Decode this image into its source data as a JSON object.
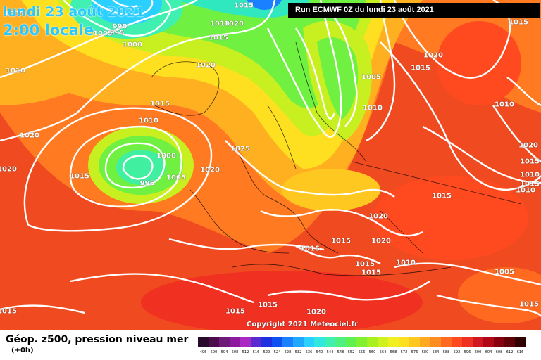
{
  "header": {
    "date_title": "lundi 23 août 2021",
    "time_title": "2:00 locale",
    "run_info": "Run ECMWF 0Z du lundi 23 août 2021"
  },
  "credit": "Copyright 2021 Meteociel.fr",
  "legend": {
    "title": "Géop. z500, pression niveau mer",
    "subtitle": "(+0h)",
    "scale_labels": [
      "496",
      "500",
      "504",
      "508",
      "512",
      "516",
      "520",
      "524",
      "528",
      "532",
      "536",
      "540",
      "544",
      "548",
      "552",
      "556",
      "560",
      "564",
      "568",
      "572",
      "576",
      "580",
      "584",
      "588",
      "592",
      "596",
      "600",
      "604",
      "608",
      "612",
      "616"
    ],
    "scale_colors": [
      "#2a0a2a",
      "#4b0d4b",
      "#6d1a78",
      "#8e1aa0",
      "#a82ac2",
      "#5a2ad0",
      "#2030e0",
      "#1050f0",
      "#1a80ff",
      "#20a8ff",
      "#2ad0ff",
      "#30e8e0",
      "#40f0b0",
      "#50f080",
      "#60f050",
      "#80f030",
      "#a8f020",
      "#d0f020",
      "#f0f020",
      "#ffe020",
      "#ffc820",
      "#ffa820",
      "#ff8c20",
      "#ff6a20",
      "#ff4a20",
      "#f03020",
      "#d01820",
      "#b00818",
      "#880010",
      "#600008",
      "#300000"
    ]
  },
  "isobar_labels": [
    {
      "text": "1015"
    },
    {
      "text": "1005"
    },
    {
      "text": "990"
    },
    {
      "text": "995"
    },
    {
      "text": "1000"
    },
    {
      "text": "1010"
    },
    {
      "text": "1020"
    },
    {
      "text": "1015"
    },
    {
      "text": "1020"
    },
    {
      "text": "1015"
    },
    {
      "text": "1010"
    },
    {
      "text": "1000"
    },
    {
      "text": "1005"
    },
    {
      "text": "995"
    },
    {
      "text": "1015"
    },
    {
      "text": "1020"
    },
    {
      "text": "1025"
    },
    {
      "text": "1020"
    },
    {
      "text": "1005"
    },
    {
      "text": "1010"
    },
    {
      "text": "1015"
    },
    {
      "text": "1020"
    },
    {
      "text": "1015"
    },
    {
      "text": "1010"
    },
    {
      "text": "1015"
    },
    {
      "text": "1010"
    },
    {
      "text": "1010"
    },
    {
      "text": "1015"
    },
    {
      "text": "1015"
    },
    {
      "text": "1020"
    },
    {
      "text": "1015"
    },
    {
      "text": "1015"
    },
    {
      "text": "1020"
    },
    {
      "text": "1015"
    },
    {
      "text": "1015"
    },
    {
      "text": "1010"
    },
    {
      "text": "1005"
    },
    {
      "text": "1015"
    },
    {
      "text": "1020"
    },
    {
      "text": "1015"
    },
    {
      "text": "1005"
    },
    {
      "text": "1015"
    },
    {
      "text": "1020"
    },
    {
      "text": "1010"
    },
    {
      "text": "1015"
    },
    {
      "text": "1020"
    }
  ]
}
